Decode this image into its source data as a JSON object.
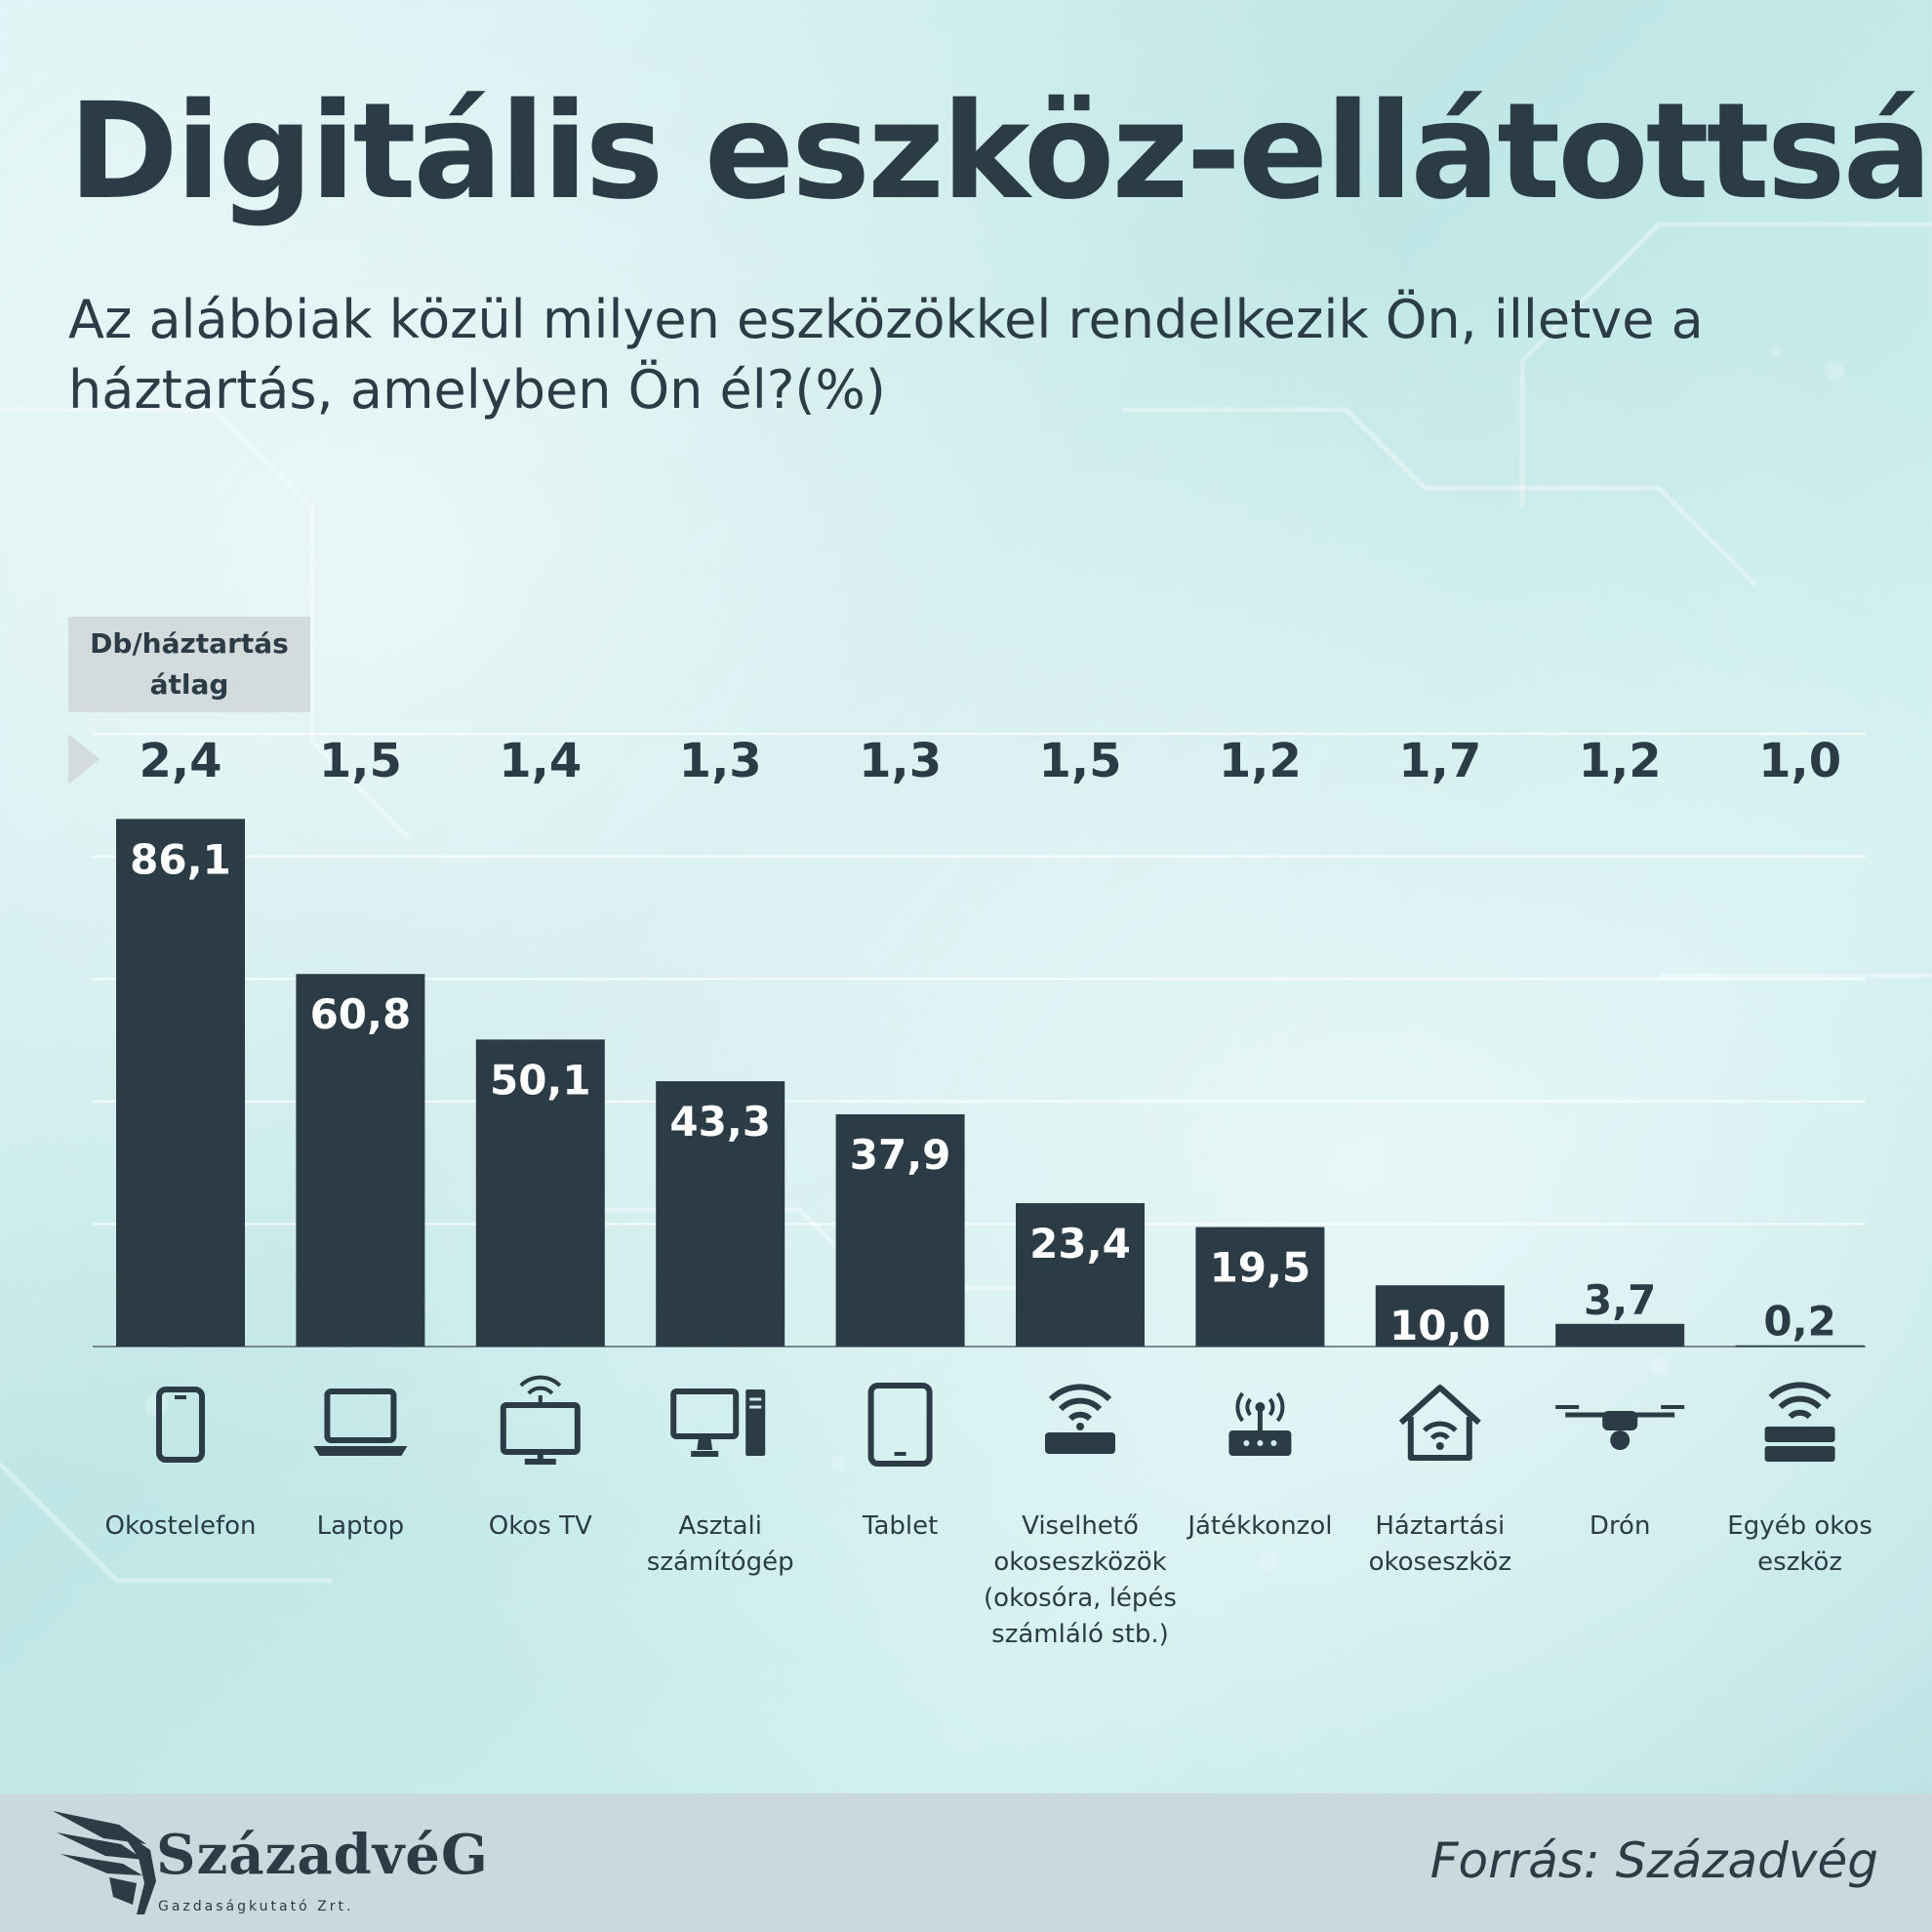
{
  "title": "Digitális eszköz-ellátottság",
  "subtitle": "Az alábbiak közül milyen eszközökkel rendelkezik Ön, illetve a háztartás, amelyben Ön él?(%)",
  "unit_box": {
    "line1": "Db/háztartás",
    "line2": "átlag"
  },
  "colors": {
    "bar": "#2b3c46",
    "text": "#2b3c46",
    "label_on_bar": "#ffffff",
    "footer": "#c9d9dd"
  },
  "chart_data": {
    "type": "bar",
    "categories": [
      [
        "Okostelefon"
      ],
      [
        "Laptop"
      ],
      [
        "Okos TV"
      ],
      [
        "Asztali",
        "számítógép"
      ],
      [
        "Tablet"
      ],
      [
        "Viselhető",
        "okoseszközök",
        "(okosóra, lépés",
        "számláló stb.)"
      ],
      [
        "Játékkonzol"
      ],
      [
        "Háztartási",
        "okoseszköz"
      ],
      [
        "Drón"
      ],
      [
        "Egyéb okos",
        "eszköz"
      ]
    ],
    "icons": [
      "smartphone-icon",
      "laptop-icon",
      "smart-tv-icon",
      "desktop-computer-icon",
      "tablet-icon",
      "wearable-device-icon",
      "game-console-icon",
      "smart-home-icon",
      "drone-icon",
      "other-smart-device-icon"
    ],
    "values": [
      86.1,
      60.8,
      50.1,
      43.3,
      37.9,
      23.4,
      19.5,
      10.0,
      3.7,
      0.2
    ],
    "value_labels": [
      "86,1",
      "60,8",
      "50,1",
      "43,3",
      "37,9",
      "23,4",
      "19,5",
      "10,0",
      "3,7",
      "0,2"
    ],
    "per_household_avg": [
      "2,4",
      "1,5",
      "1,4",
      "1,3",
      "1,3",
      "1,5",
      "1,2",
      "1,7",
      "1,2",
      "1,0"
    ],
    "ylim": [
      0,
      100
    ],
    "grid": true
  },
  "footer": {
    "logo_name": "SzázadvéG",
    "logo_sub": "Gazdaságkutató Zrt.",
    "source": "Forrás: Századvég"
  }
}
